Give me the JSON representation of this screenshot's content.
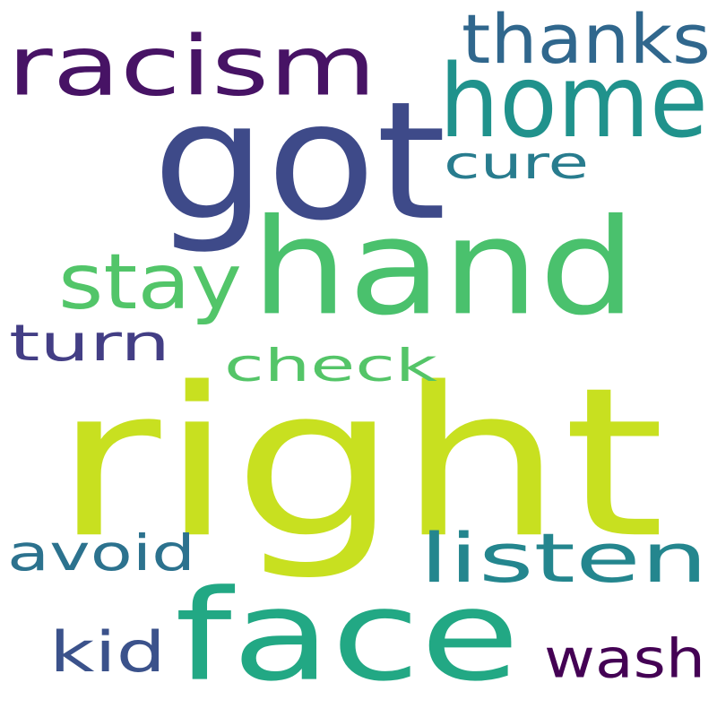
{
  "words": [
    {
      "id": "right",
      "text": "right",
      "color": "#c8e020"
    },
    {
      "id": "hand",
      "text": "hand",
      "color": "#4ac16d"
    },
    {
      "id": "face",
      "text": "face",
      "color": "#22a884"
    },
    {
      "id": "got",
      "text": "got",
      "color": "#3e4a89"
    },
    {
      "id": "racism",
      "text": "racism",
      "color": "#471365"
    },
    {
      "id": "home",
      "text": "home",
      "color": "#20928c"
    },
    {
      "id": "thanks",
      "text": "thanks",
      "color": "#30678d"
    },
    {
      "id": "cure",
      "text": "cure",
      "color": "#287c8e"
    },
    {
      "id": "stay",
      "text": "stay",
      "color": "#52c569"
    },
    {
      "id": "turn",
      "text": "turn",
      "color": "#433e85"
    },
    {
      "id": "check",
      "text": "check",
      "color": "#54c568"
    },
    {
      "id": "avoid",
      "text": "avoid",
      "color": "#2c728e"
    },
    {
      "id": "listen",
      "text": "listen",
      "color": "#24868e"
    },
    {
      "id": "kid",
      "text": "kid",
      "color": "#3b528b"
    },
    {
      "id": "wash",
      "text": "wash",
      "color": "#440154"
    }
  ]
}
